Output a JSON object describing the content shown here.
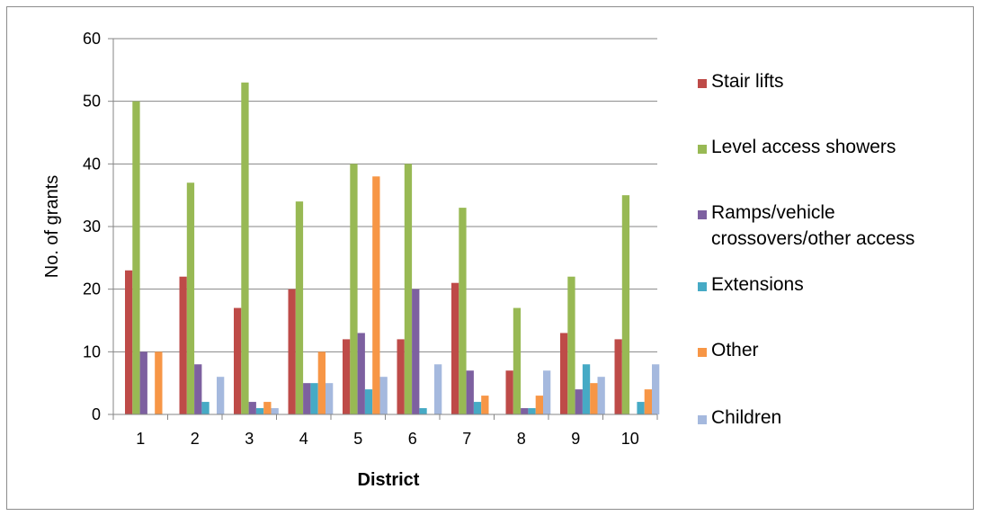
{
  "chart_data": {
    "type": "bar",
    "title": "",
    "xlabel": "District",
    "ylabel": "No. of grants",
    "ylim": [
      0,
      60
    ],
    "yticks": [
      0,
      10,
      20,
      30,
      40,
      50,
      60
    ],
    "grid": true,
    "legend": "right",
    "categories": [
      "1",
      "2",
      "3",
      "4",
      "5",
      "6",
      "7",
      "8",
      "9",
      "10"
    ],
    "series": [
      {
        "name": "Stair lifts",
        "color": "#be4b48",
        "values": [
          23,
          22,
          17,
          20,
          12,
          12,
          21,
          7,
          13,
          12
        ]
      },
      {
        "name": "Level access showers",
        "color": "#98b954",
        "values": [
          50,
          37,
          53,
          34,
          40,
          40,
          33,
          17,
          22,
          35
        ]
      },
      {
        "name": "Ramps/vehicle crossovers/other access",
        "name_lines": [
          "Ramps/vehicle",
          "crossovers/other access"
        ],
        "color": "#7d60a0",
        "values": [
          10,
          8,
          2,
          5,
          13,
          20,
          7,
          1,
          4,
          0
        ]
      },
      {
        "name": "Extensions",
        "color": "#46aac5",
        "values": [
          0,
          2,
          1,
          5,
          4,
          1,
          2,
          1,
          8,
          2
        ]
      },
      {
        "name": "Other",
        "color": "#f79646",
        "values": [
          10,
          0,
          2,
          10,
          38,
          0,
          3,
          3,
          5,
          4
        ]
      },
      {
        "name": "Children",
        "color": "#a5b9de",
        "values": [
          0,
          6,
          1,
          5,
          6,
          8,
          0,
          7,
          6,
          8
        ]
      }
    ]
  }
}
